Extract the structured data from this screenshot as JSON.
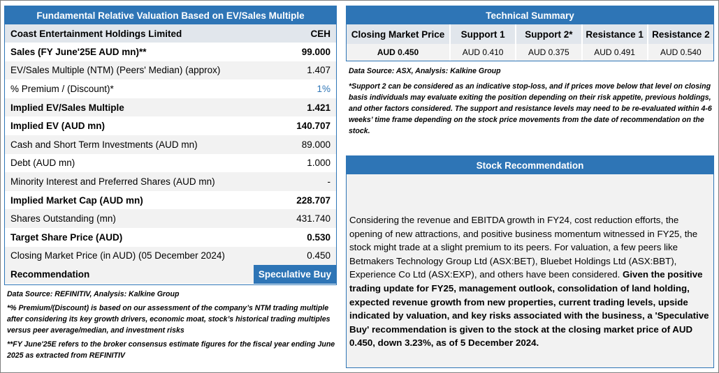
{
  "valuation": {
    "title": "Fundamental Relative Valuation Based on EV/Sales Multiple",
    "company": {
      "name": "Coast Entertainment Holdings Limited",
      "ticker": "CEH"
    },
    "rows": [
      {
        "label": "Sales (FY June'25E AUD mn)**",
        "value": "99.000"
      },
      {
        "label": "EV/Sales Multiple (NTM)  (Peers' Median) (approx)",
        "value": "1.407"
      },
      {
        "label": "% Premium / (Discount)*",
        "value": "1%"
      },
      {
        "label": "Implied EV/Sales Multiple",
        "value": "1.421"
      },
      {
        "label": "Implied EV (AUD mn)",
        "value": "140.707"
      },
      {
        "label": "Cash and Short Term Investments (AUD mn)",
        "value": "89.000"
      },
      {
        "label": "Debt (AUD mn)",
        "value": "1.000"
      },
      {
        "label": "Minority Interest and Preferred Shares (AUD mn)",
        "value": "-"
      },
      {
        "label": "Implied Market Cap (AUD mn)",
        "value": "228.707"
      },
      {
        "label": "Shares Outstanding (mn)",
        "value": "431.740"
      },
      {
        "label": "Target Share Price (AUD)",
        "value": "0.530"
      },
      {
        "label": "Closing Market Price (in AUD) (05 December 2024)",
        "value": "0.450"
      }
    ],
    "recommendation": {
      "label": "Recommendation",
      "value": "Speculative Buy"
    },
    "source": "Data Source: REFINITIV, Analysis: Kalkine Group",
    "note1": "*% Premium/(Discount) is based on our assessment of the company’s NTM trading multiple after considering its key growth drivers, economic moat, stock’s historical trading multiples versus peer average/median, and investment risks",
    "note2": "**FY June'25E refers to the broker consensus estimate figures for the fiscal year ending June 2025 as extracted from REFINITIV"
  },
  "technical": {
    "title": "Technical Summary",
    "headers": [
      "Closing Market Price",
      "Support 1",
      "Support 2*",
      "Resistance 1",
      "Resistance 2"
    ],
    "values": [
      "AUD 0.450",
      "AUD 0.410",
      "AUD 0.375",
      "AUD 0.491",
      "AUD 0.540"
    ],
    "source": "Data Source: ASX, Analysis: Kalkine Group",
    "note": "*Support 2 can be considered as an indicative stop-loss, and if prices move below that level on closing basis individuals may evaluate exiting the position depending on their risk appetite, previous holdings, and other factors considered. The support and resistance levels may need to be re-evaluated within 4-6 weeks’ time frame depending on the stock price movements from the date of recommendation on the stock."
  },
  "stock": {
    "title": "Stock Recommendation",
    "text_regular": "Considering the revenue and EBITDA growth in FY24, cost reduction efforts, the opening of new attractions, and positive business momentum witnessed in FY25, the stock might trade at a slight premium to its peers. For valuation, a few peers like Betmakers Technology Group Ltd (ASX:BET), Bluebet Holdings Ltd (ASX:BBT), Experience Co Ltd (ASX:EXP), and others have been considered. ",
    "text_bold": "Given the positive trading update for FY25, management outlook, consolidation of land holding, expected revenue growth from new properties, current trading levels, upside indicated by valuation, and key risks associated with the business, a 'Speculative Buy' recommendation is given to the stock at the closing market price of AUD 0.450, down 3.23%,  as of 5 December 2024."
  },
  "colors": {
    "accent": "#2e75b6",
    "header_band": "#e1e6ec",
    "alt_row": "#f2f2f2"
  }
}
